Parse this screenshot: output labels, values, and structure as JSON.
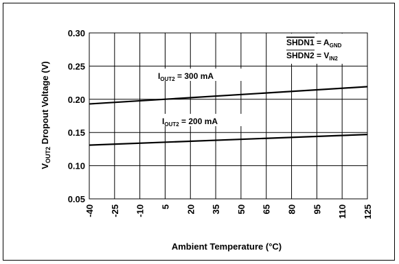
{
  "chart_data": {
    "type": "line",
    "xlabel": "Ambient Temperature (°C)",
    "ylabel": {
      "prefix": "V",
      "sub": "OUT2",
      "suffix": " Dropout Voltage (V)"
    },
    "xlim": [
      -40,
      125
    ],
    "ylim": [
      0.05,
      0.3
    ],
    "x_ticks": [
      -40,
      -25,
      -10,
      5,
      20,
      35,
      50,
      65,
      80,
      95,
      110,
      125
    ],
    "x_tick_labels": [
      "-40",
      "-25",
      "-10",
      "5",
      "20",
      "35",
      "50",
      "65",
      "80",
      "95",
      "110",
      "125"
    ],
    "y_ticks": [
      0.05,
      0.1,
      0.15,
      0.2,
      0.25,
      0.3
    ],
    "y_tick_labels": [
      "0.05",
      "0.10",
      "0.15",
      "0.20",
      "0.25",
      "0.30"
    ],
    "grid": true,
    "series": [
      {
        "name": {
          "prefix": "I",
          "sub": "OUT2",
          "suffix": " = 300 mA"
        },
        "x": [
          -40,
          125
        ],
        "y": [
          0.193,
          0.219
        ]
      },
      {
        "name": {
          "prefix": "I",
          "sub": "OUT2",
          "suffix": " = 200 mA"
        },
        "x": [
          -40,
          125
        ],
        "y": [
          0.131,
          0.147
        ]
      }
    ],
    "legend_box": [
      {
        "over": "SHDN1",
        "rest": " = A",
        "sub": "GND"
      },
      {
        "over": "SHDN2",
        "rest": " = V",
        "sub": "IN2"
      }
    ]
  }
}
